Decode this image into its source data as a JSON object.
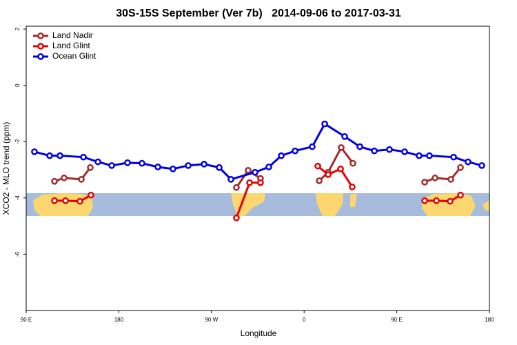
{
  "chart_data": {
    "type": "line",
    "title": "30S-15S September (Ver 7b)   2014-09-06 to 2017-03-31",
    "x_label": "Longitude",
    "y_label": "XCO2 - MLO trend (ppm)",
    "xlim": [
      90,
      540
    ],
    "xticks": [
      {
        "value": 90,
        "label": "90 E"
      },
      {
        "value": 180,
        "label": "180"
      },
      {
        "value": 270,
        "label": "90 W"
      },
      {
        "value": 360,
        "label": "0"
      },
      {
        "value": 450,
        "label": "90 E"
      },
      {
        "value": 540,
        "label": "180"
      }
    ],
    "ylim": [
      -8,
      2.1
    ],
    "yticks": [
      2,
      0,
      -2,
      -4,
      -6
    ],
    "legend": "top-left",
    "series": [
      {
        "name": "Land Nadir",
        "color": "#a52a2a",
        "x": [
          117.5,
          126.8,
          143.6,
          152.3,
          null,
          294.2,
          305.6,
          317.6,
          null,
          374.6,
          383.3,
          396.0,
          407.4,
          null,
          477.1,
          487.1,
          502.5,
          511.9
        ],
        "values": [
          -3.41,
          -3.29,
          -3.34,
          -2.92,
          null,
          -3.63,
          -3.02,
          -3.31,
          null,
          -3.39,
          -3.09,
          -2.21,
          -2.77,
          null,
          -3.44,
          -3.29,
          -3.34,
          -2.92
        ]
      },
      {
        "name": "Land Glint",
        "color": "#e60000",
        "x": [
          117.5,
          128.2,
          142.2,
          152.9,
          null,
          294.2,
          307.0,
          317.6,
          null,
          373.3,
          383.3,
          395.4,
          406.7,
          null,
          477.1,
          488.5,
          501.8,
          511.9
        ],
        "values": [
          -4.1,
          -4.1,
          -4.12,
          -3.9,
          null,
          -4.71,
          -3.46,
          -3.46,
          null,
          -2.87,
          -3.17,
          -2.97,
          -3.61,
          null,
          -4.1,
          -4.1,
          -4.12,
          -3.9
        ]
      },
      {
        "name": "Ocean Glint",
        "color": "#0000e6",
        "x": [
          98.0,
          112.8,
          122.8,
          145.6,
          159.7,
          173.1,
          188.4,
          202.5,
          217.9,
          232.6,
          247.4,
          262.8,
          277.5,
          288.9,
          312.3,
          325.7,
          337.8,
          351.2,
          367.9,
          380.0,
          399.4,
          414.1,
          428.2,
          442.9,
          457.6,
          471.7,
          481.7,
          505.2,
          519.2,
          532.6
        ],
        "values": [
          -2.36,
          -2.5,
          -2.5,
          -2.55,
          -2.72,
          -2.85,
          -2.75,
          -2.77,
          -2.9,
          -2.97,
          -2.85,
          -2.8,
          -2.92,
          -3.34,
          -3.09,
          -2.9,
          -2.5,
          -2.33,
          -2.18,
          -1.37,
          -1.82,
          -2.18,
          -2.33,
          -2.28,
          -2.36,
          -2.5,
          -2.5,
          -2.55,
          -2.72,
          -2.85
        ]
      }
    ]
  }
}
